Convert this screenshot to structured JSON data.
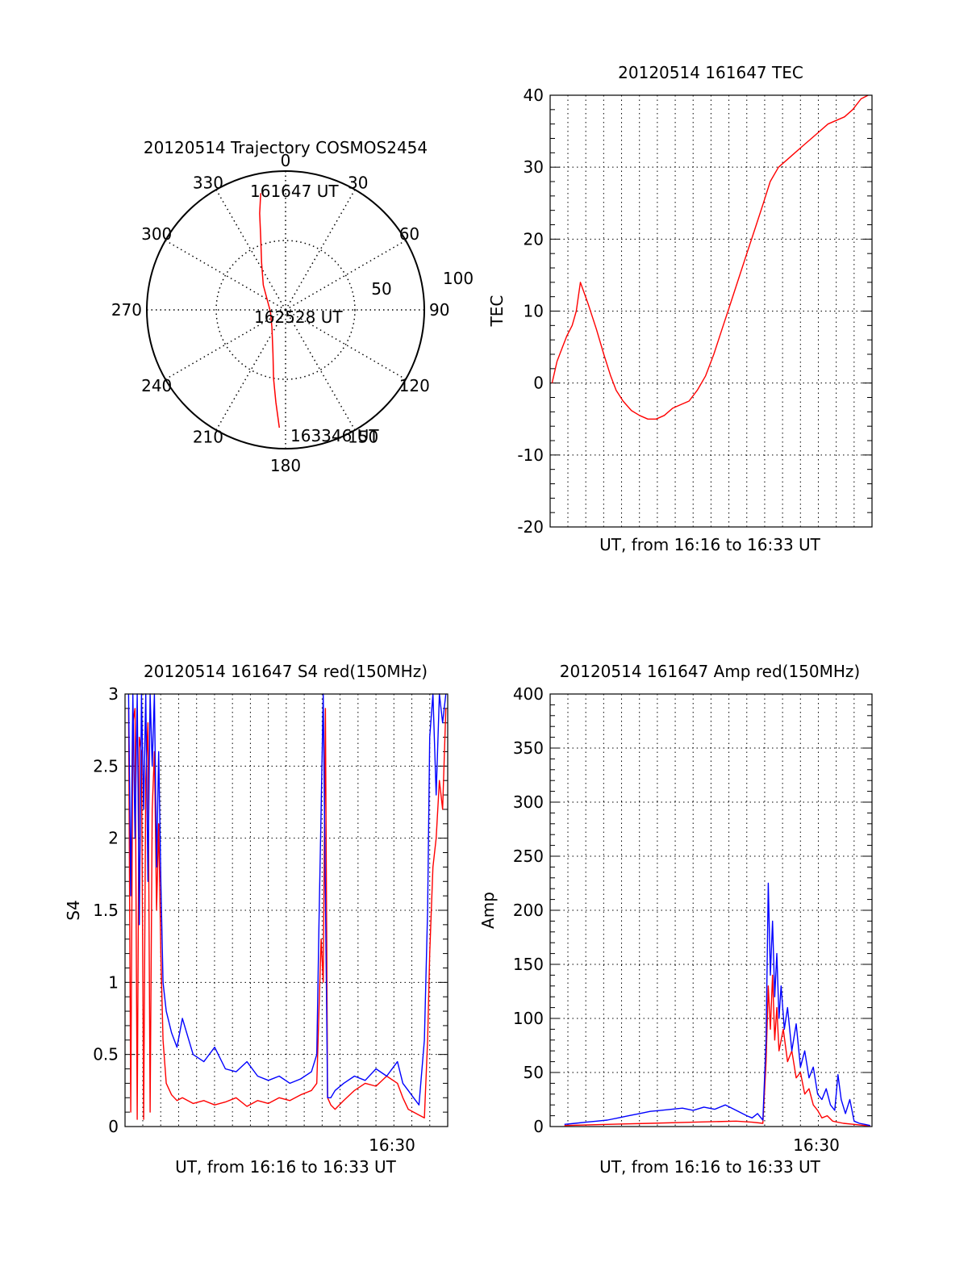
{
  "chart_data": [
    {
      "type": "polar",
      "title": "20120514 Trajectory COSMOS2454",
      "angle_ticks": [
        "0",
        "30",
        "60",
        "90",
        "120",
        "150",
        "180",
        "210",
        "240",
        "270",
        "300",
        "330"
      ],
      "radial_ticks": [
        "50",
        "100"
      ],
      "rlim": [
        0,
        100
      ],
      "grid": true,
      "annotations": [
        "161647 UT",
        "162528 UT",
        "163346 UT"
      ],
      "series": [
        {
          "color": "#ff0000",
          "points": [
            {
              "az": 348,
              "r": 86
            },
            {
              "az": 345,
              "r": 72
            },
            {
              "az": 341,
              "r": 55
            },
            {
              "az": 333,
              "r": 38
            },
            {
              "az": 318,
              "r": 24
            },
            {
              "az": 262,
              "r": 11
            },
            {
              "az": 218,
              "r": 16
            },
            {
              "az": 196,
              "r": 33
            },
            {
              "az": 190,
              "r": 50
            },
            {
              "az": 186,
              "r": 67
            },
            {
              "az": 183,
              "r": 85
            }
          ]
        }
      ]
    },
    {
      "type": "line",
      "title": "20120514 161647 TEC",
      "xlabel": "UT, from 16:16 to 16:33 UT",
      "ylabel": "TEC",
      "ylim": [
        -20,
        40
      ],
      "yticks": [
        "-20",
        "-10",
        "0",
        "10",
        "20",
        "30",
        "40"
      ],
      "xlim": [
        16.779,
        16.896
      ],
      "grid": true,
      "series": [
        {
          "color": "#ff0000",
          "x": [
            16.7797,
            16.7815,
            16.7835,
            16.785,
            16.787,
            16.7885,
            16.79,
            16.7928,
            16.7958,
            16.7985,
            16.801,
            16.803,
            16.8055,
            16.8085,
            16.8115,
            16.8145,
            16.8175,
            16.8205,
            16.8235,
            16.8265,
            16.8295,
            16.8325,
            16.8355,
            16.8385,
            16.8415,
            16.8445,
            16.8475,
            16.8505,
            16.8535,
            16.8565,
            16.859,
            16.862,
            16.865,
            16.868,
            16.871,
            16.874,
            16.877,
            16.88,
            16.883,
            16.886,
            16.889,
            16.892,
            16.8946
          ],
          "y": [
            0,
            3,
            5,
            6.5,
            8,
            10,
            14,
            11,
            7.5,
            4,
            1,
            -1,
            -2.5,
            -3.8,
            -4.5,
            -5,
            -5,
            -4.5,
            -3.5,
            -3,
            -2.5,
            -1,
            1,
            4,
            7.5,
            11,
            14.5,
            18,
            21.5,
            25,
            28,
            30,
            31,
            32,
            33,
            34,
            35,
            36,
            36.5,
            37,
            38,
            39.5,
            40
          ]
        }
      ]
    },
    {
      "type": "line",
      "title": "20120514 161647 S4 red(150MHz)",
      "xlabel": "UT, from 16:16 to 16:33 UT",
      "ylabel": "S4",
      "ylim": [
        0,
        3
      ],
      "yticks": [
        "0",
        "0.5",
        "1",
        "1.5",
        "2",
        "2.5",
        "3"
      ],
      "xlim": [
        16.2667,
        16.5667
      ],
      "xticks": [
        "16:30"
      ],
      "grid": true,
      "series": [
        {
          "color": "#ff0000",
          "x": [
            16.27,
            16.272,
            16.274,
            16.276,
            16.278,
            16.28,
            16.282,
            16.284,
            16.286,
            16.288,
            16.29,
            16.292,
            16.294,
            16.296,
            16.298,
            16.3,
            16.302,
            16.305,
            16.31,
            16.315,
            16.32,
            16.33,
            16.34,
            16.35,
            16.36,
            16.37,
            16.38,
            16.39,
            16.4,
            16.41,
            16.42,
            16.43,
            16.44,
            16.445,
            16.447,
            16.449,
            16.451,
            16.453,
            16.455,
            16.458,
            16.462,
            16.47,
            16.48,
            16.49,
            16.5,
            16.51,
            16.52,
            16.525,
            16.53,
            16.535,
            16.54,
            16.545,
            16.548,
            16.55,
            16.553,
            16.556,
            16.559,
            16.562,
            16.565
          ],
          "y": [
            2.9,
            0.1,
            2.8,
            2.9,
            0.05,
            2.7,
            2.6,
            0.05,
            2.4,
            2.8,
            0.1,
            2.2,
            2.6,
            1.5,
            2.1,
            1.2,
            0.6,
            0.3,
            0.22,
            0.18,
            0.2,
            0.16,
            0.18,
            0.15,
            0.17,
            0.2,
            0.14,
            0.18,
            0.16,
            0.2,
            0.18,
            0.22,
            0.25,
            0.3,
            0.8,
            1.3,
            1.0,
            2.9,
            0.2,
            0.15,
            0.12,
            0.18,
            0.25,
            0.3,
            0.28,
            0.35,
            0.3,
            0.2,
            0.12,
            0.1,
            0.08,
            0.06,
            0.6,
            1.2,
            1.8,
            2.0,
            2.4,
            2.2,
            2.9
          ]
        },
        {
          "color": "#0000ff",
          "x": [
            16.27,
            16.272,
            16.274,
            16.276,
            16.278,
            16.28,
            16.282,
            16.284,
            16.286,
            16.288,
            16.29,
            16.292,
            16.294,
            16.296,
            16.298,
            16.3,
            16.302,
            16.305,
            16.31,
            16.315,
            16.32,
            16.33,
            16.34,
            16.35,
            16.36,
            16.37,
            16.38,
            16.39,
            16.4,
            16.41,
            16.42,
            16.43,
            16.44,
            16.445,
            16.447,
            16.449,
            16.451,
            16.453,
            16.455,
            16.458,
            16.462,
            16.47,
            16.48,
            16.49,
            16.5,
            16.51,
            16.52,
            16.525,
            16.53,
            16.535,
            16.54,
            16.545,
            16.548,
            16.55,
            16.553,
            16.556,
            16.559,
            16.562,
            16.565
          ],
          "y": [
            3,
            1.6,
            3,
            2.0,
            3,
            1.4,
            3,
            2.2,
            3,
            1.7,
            3,
            2.5,
            3,
            1.8,
            2.6,
            1.7,
            1.0,
            0.8,
            0.65,
            0.55,
            0.75,
            0.5,
            0.45,
            0.55,
            0.4,
            0.38,
            0.45,
            0.35,
            0.32,
            0.35,
            0.3,
            0.33,
            0.38,
            0.5,
            1.4,
            2.2,
            3,
            1.6,
            0.2,
            0.2,
            0.25,
            0.3,
            0.35,
            0.32,
            0.4,
            0.35,
            0.45,
            0.3,
            0.25,
            0.2,
            0.15,
            0.6,
            1.5,
            2.7,
            3,
            2.3,
            3,
            2.8,
            3
          ]
        }
      ]
    },
    {
      "type": "line",
      "title": "20120514 161647 Amp red(150MHz)",
      "xlabel": "UT, from 16:16 to 16:33 UT",
      "ylabel": "Amp",
      "ylim": [
        0,
        400
      ],
      "yticks": [
        "0",
        "50",
        "100",
        "150",
        "200",
        "250",
        "300",
        "350",
        "400"
      ],
      "xlim": [
        16.2667,
        16.5667
      ],
      "xticks": [
        "16:30"
      ],
      "grid": true,
      "series": [
        {
          "color": "#ff0000",
          "x": [
            16.28,
            16.32,
            16.36,
            16.4,
            16.44,
            16.455,
            16.465,
            16.468,
            16.47,
            16.472,
            16.474,
            16.476,
            16.478,
            16.48,
            16.484,
            16.488,
            16.492,
            16.496,
            16.5,
            16.504,
            16.508,
            16.512,
            16.516,
            16.52,
            16.525,
            16.53,
            16.54,
            16.55,
            16.56,
            16.565
          ],
          "y": [
            1,
            2,
            3,
            4,
            5,
            4,
            3,
            60,
            130,
            90,
            140,
            80,
            110,
            70,
            90,
            60,
            70,
            45,
            50,
            30,
            35,
            20,
            15,
            8,
            10,
            5,
            3,
            2,
            1,
            1
          ]
        },
        {
          "color": "#0000ff",
          "x": [
            16.28,
            16.29,
            16.3,
            16.31,
            16.32,
            16.33,
            16.34,
            16.35,
            16.36,
            16.37,
            16.38,
            16.39,
            16.4,
            16.41,
            16.42,
            16.43,
            16.44,
            16.45,
            16.455,
            16.46,
            16.465,
            16.468,
            16.47,
            16.472,
            16.474,
            16.476,
            16.478,
            16.48,
            16.482,
            16.485,
            16.488,
            16.492,
            16.496,
            16.5,
            16.504,
            16.508,
            16.512,
            16.516,
            16.52,
            16.524,
            16.528,
            16.532,
            16.535,
            16.538,
            16.542,
            16.546,
            16.55,
            16.555,
            16.56,
            16.565
          ],
          "y": [
            2,
            3,
            4,
            5,
            6,
            8,
            10,
            12,
            14,
            15,
            16,
            17,
            15,
            18,
            16,
            20,
            15,
            10,
            8,
            12,
            6,
            80,
            225,
            140,
            190,
            120,
            160,
            100,
            130,
            90,
            110,
            70,
            95,
            55,
            70,
            45,
            55,
            30,
            25,
            35,
            20,
            15,
            48,
            25,
            12,
            25,
            5,
            3,
            2,
            1
          ]
        }
      ]
    }
  ]
}
